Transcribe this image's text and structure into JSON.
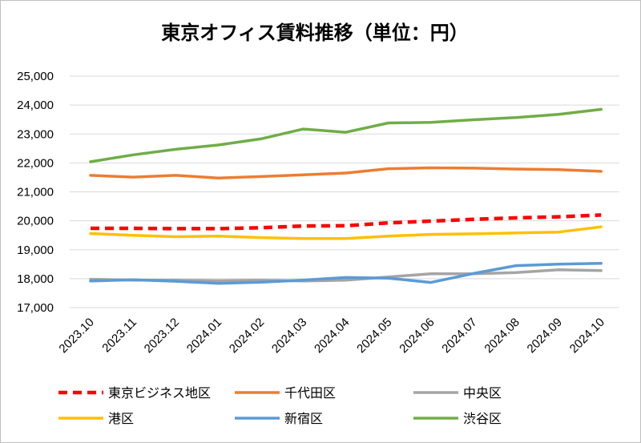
{
  "chart_data": {
    "type": "line",
    "title": "東京オフィス賃料推移（単位：円）",
    "xlabel": "",
    "ylabel": "",
    "categories": [
      "2023.10",
      "2023.11",
      "2023.12",
      "2024.01",
      "2024.02",
      "2024.03",
      "2024.04",
      "2024.05",
      "2024.06",
      "2024.07",
      "2024.08",
      "2024.09",
      "2024.10"
    ],
    "ylim": [
      17000,
      25000
    ],
    "yticks": [
      17000,
      18000,
      19000,
      20000,
      21000,
      22000,
      23000,
      24000,
      25000
    ],
    "ytick_labels": [
      "17,000",
      "18,000",
      "19,000",
      "20,000",
      "21,000",
      "22,000",
      "23,000",
      "24,000",
      "25,000"
    ],
    "grid": true,
    "legend_position": "bottom",
    "series": [
      {
        "name": "東京ビジネス地区",
        "color": "#ff0000",
        "dashed": true,
        "values": [
          19740,
          19740,
          19730,
          19730,
          19760,
          19820,
          19830,
          19930,
          19990,
          20050,
          20100,
          20140,
          20200
        ]
      },
      {
        "name": "千代田区",
        "color": "#ed7d31",
        "dashed": false,
        "values": [
          21570,
          21510,
          21570,
          21480,
          21530,
          21590,
          21650,
          21800,
          21830,
          21820,
          21790,
          21770,
          21710
        ]
      },
      {
        "name": "中央区",
        "color": "#a5a5a5",
        "dashed": false,
        "values": [
          17980,
          17950,
          17950,
          17930,
          17950,
          17920,
          17950,
          18060,
          18170,
          18170,
          18210,
          18310,
          18280
        ]
      },
      {
        "name": "港区",
        "color": "#ffc000",
        "dashed": false,
        "values": [
          19560,
          19500,
          19450,
          19470,
          19420,
          19390,
          19390,
          19470,
          19530,
          19550,
          19580,
          19610,
          19790
        ]
      },
      {
        "name": "新宿区",
        "color": "#5b9bd5",
        "dashed": false,
        "values": [
          17920,
          17960,
          17910,
          17840,
          17880,
          17950,
          18040,
          18020,
          17870,
          18180,
          18450,
          18500,
          18530
        ]
      },
      {
        "name": "渋谷区",
        "color": "#70ad47",
        "dashed": false,
        "values": [
          22040,
          22280,
          22470,
          22620,
          22830,
          23170,
          23060,
          23380,
          23400,
          23490,
          23570,
          23680,
          23850
        ]
      }
    ]
  }
}
